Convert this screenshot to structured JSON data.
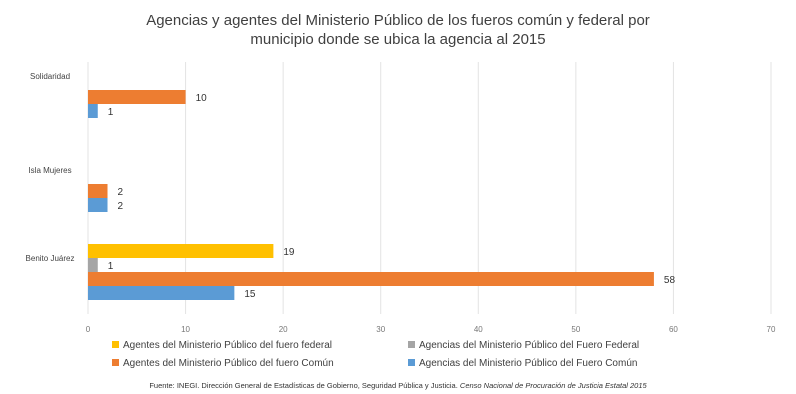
{
  "chart_data": {
    "type": "bar",
    "orientation": "horizontal",
    "title_lines": [
      "Agencias y agentes del Ministerio Público de los fueros común y federal por",
      "municipio donde se ubica la agencia al 2015"
    ],
    "categories": [
      "Solidaridad",
      "Isla Mujeres",
      "Benito Juárez"
    ],
    "series": [
      {
        "name": "Agentes del Ministerio Público del fuero federal",
        "color": "#ffc000",
        "values": [
          null,
          null,
          19
        ]
      },
      {
        "name": "Agencias del Ministerio Público del Fuero Federal",
        "color": "#a5a5a5",
        "values": [
          null,
          null,
          1
        ]
      },
      {
        "name": "Agentes del Ministerio Público del fuero Común",
        "color": "#ed7d31",
        "values": [
          10,
          2,
          58
        ]
      },
      {
        "name": "Agencias del Ministerio Público del Fuero Común",
        "color": "#5b9bd5",
        "values": [
          1,
          2,
          15
        ]
      }
    ],
    "xlim": [
      0,
      70
    ],
    "xticks": [
      0,
      10,
      20,
      30,
      40,
      50,
      60,
      70
    ],
    "grid": true,
    "legend_position": "bottom",
    "source": "Fuente: INEGI. Dirección General de Estadísticas de Gobierno, Seguridad Pública y Justicia.",
    "source_italic": "Censo Nacional de Procuración de Justicia Estatal 2015"
  }
}
